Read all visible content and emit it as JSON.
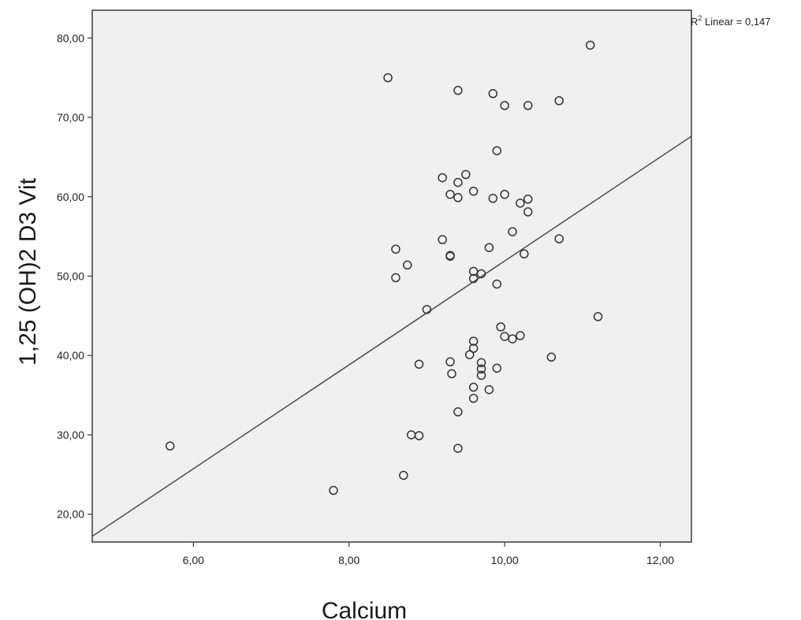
{
  "chart_data": {
    "type": "scatter",
    "title": "",
    "xlabel": "Calcium",
    "ylabel": "1,25 (OH)2 D3 Vit",
    "xlim": [
      4.7,
      12.4
    ],
    "ylim": [
      16.5,
      83.5
    ],
    "xticks": [
      6,
      8,
      10,
      12
    ],
    "yticks": [
      20,
      30,
      40,
      50,
      60,
      70,
      80
    ],
    "xtick_labels": [
      "6,00",
      "8,00",
      "10,00",
      "12,00"
    ],
    "ytick_labels": [
      "20,00",
      "30,00",
      "40,00",
      "50,00",
      "60,00",
      "70,00",
      "80,00"
    ],
    "grid": false,
    "background_color": "#f0f0f0",
    "marker": "open-circle",
    "fit_line": {
      "type": "linear",
      "annotation_prefix": "R",
      "annotation_sup": "2",
      "annotation_text": " Linear = 0,147",
      "slope": 6.545,
      "intercept": -13.54
    },
    "points": [
      {
        "x": 5.7,
        "y": 28.6
      },
      {
        "x": 7.8,
        "y": 23.0
      },
      {
        "x": 8.5,
        "y": 75.0
      },
      {
        "x": 8.6,
        "y": 53.4
      },
      {
        "x": 8.6,
        "y": 49.8
      },
      {
        "x": 8.7,
        "y": 24.9
      },
      {
        "x": 8.75,
        "y": 51.4
      },
      {
        "x": 8.8,
        "y": 30.0
      },
      {
        "x": 8.9,
        "y": 29.9
      },
      {
        "x": 8.9,
        "y": 38.9
      },
      {
        "x": 9.0,
        "y": 45.8
      },
      {
        "x": 9.2,
        "y": 62.4
      },
      {
        "x": 9.2,
        "y": 54.6
      },
      {
        "x": 9.3,
        "y": 60.3
      },
      {
        "x": 9.3,
        "y": 52.5
      },
      {
        "x": 9.3,
        "y": 52.6
      },
      {
        "x": 9.3,
        "y": 39.2
      },
      {
        "x": 9.32,
        "y": 37.7
      },
      {
        "x": 9.4,
        "y": 73.4
      },
      {
        "x": 9.4,
        "y": 61.8
      },
      {
        "x": 9.4,
        "y": 59.9
      },
      {
        "x": 9.4,
        "y": 32.9
      },
      {
        "x": 9.4,
        "y": 28.3
      },
      {
        "x": 9.5,
        "y": 62.8
      },
      {
        "x": 9.55,
        "y": 40.1
      },
      {
        "x": 9.6,
        "y": 60.7
      },
      {
        "x": 9.6,
        "y": 50.6
      },
      {
        "x": 9.6,
        "y": 49.7
      },
      {
        "x": 9.6,
        "y": 41.8
      },
      {
        "x": 9.6,
        "y": 40.9
      },
      {
        "x": 9.6,
        "y": 36.0
      },
      {
        "x": 9.6,
        "y": 34.6
      },
      {
        "x": 9.7,
        "y": 50.3
      },
      {
        "x": 9.7,
        "y": 39.1
      },
      {
        "x": 9.7,
        "y": 38.3
      },
      {
        "x": 9.7,
        "y": 37.5
      },
      {
        "x": 9.8,
        "y": 53.6
      },
      {
        "x": 9.8,
        "y": 35.7
      },
      {
        "x": 9.85,
        "y": 73.0
      },
      {
        "x": 9.85,
        "y": 59.8
      },
      {
        "x": 9.9,
        "y": 65.8
      },
      {
        "x": 9.9,
        "y": 49.0
      },
      {
        "x": 9.9,
        "y": 38.4
      },
      {
        "x": 9.95,
        "y": 43.6
      },
      {
        "x": 10.0,
        "y": 71.5
      },
      {
        "x": 10.0,
        "y": 60.3
      },
      {
        "x": 10.0,
        "y": 42.4
      },
      {
        "x": 10.1,
        "y": 55.6
      },
      {
        "x": 10.1,
        "y": 42.1
      },
      {
        "x": 10.2,
        "y": 59.2
      },
      {
        "x": 10.2,
        "y": 42.5
      },
      {
        "x": 10.25,
        "y": 52.8
      },
      {
        "x": 10.3,
        "y": 71.5
      },
      {
        "x": 10.3,
        "y": 59.7
      },
      {
        "x": 10.3,
        "y": 58.1
      },
      {
        "x": 10.6,
        "y": 39.8
      },
      {
        "x": 10.7,
        "y": 72.1
      },
      {
        "x": 10.7,
        "y": 54.7
      },
      {
        "x": 11.1,
        "y": 79.1
      },
      {
        "x": 11.2,
        "y": 44.9
      }
    ]
  }
}
